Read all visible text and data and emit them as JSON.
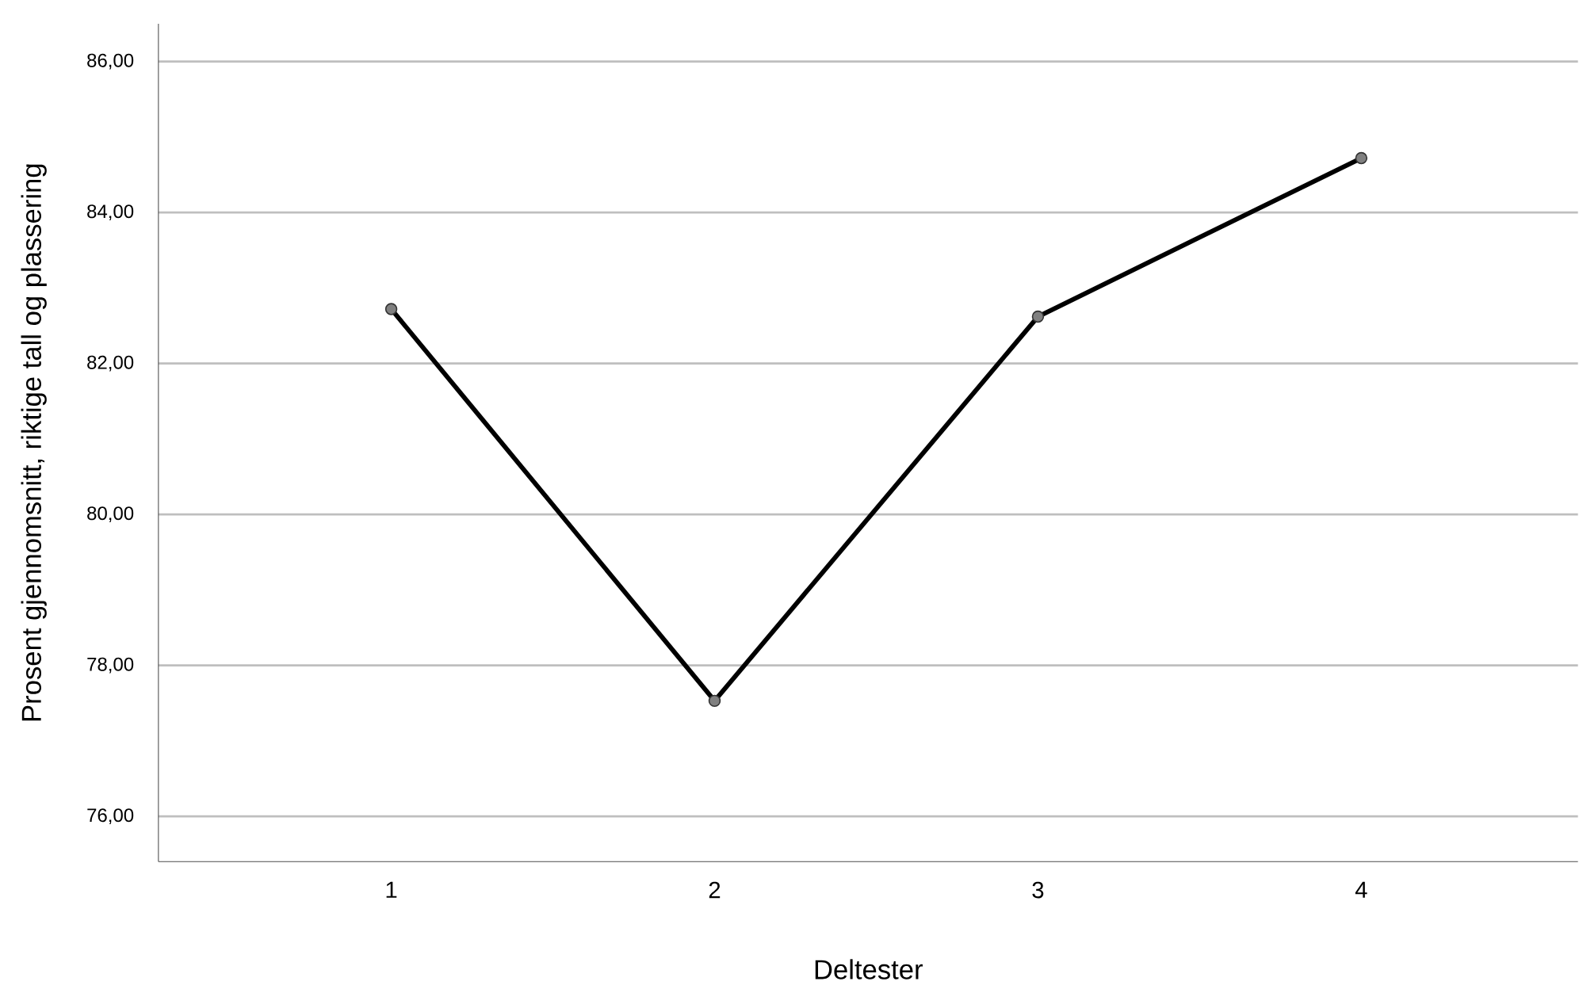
{
  "chart_data": {
    "type": "line",
    "xlabel": "Deltester",
    "ylabel": "Prosent gjennomsnitt, riktige tall og plassering",
    "categories": [
      "1",
      "2",
      "3",
      "4"
    ],
    "series": [
      {
        "color": "#000000",
        "values": [
          82.72,
          77.53,
          82.62,
          84.72
        ]
      }
    ],
    "ylim": [
      75.4,
      86.5
    ],
    "yticks": [
      {
        "value": 76,
        "label": "76,00"
      },
      {
        "value": 78,
        "label": "78,00"
      },
      {
        "value": 80,
        "label": "80,00"
      },
      {
        "value": 82,
        "label": "82,00"
      },
      {
        "value": 84,
        "label": "84,00"
      },
      {
        "value": 86,
        "label": "86,00"
      }
    ],
    "grid": "y",
    "marker": "circle",
    "line_style": "solid"
  }
}
